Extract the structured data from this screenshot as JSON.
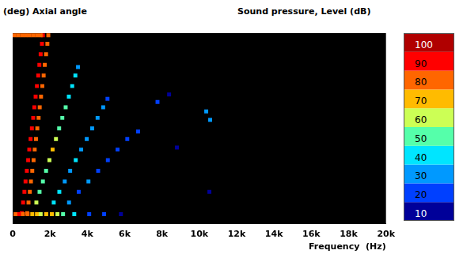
{
  "chart_data": {
    "type": "heatmap",
    "title": "Sound pressure, Level  (dB)",
    "y_label": "(deg)  Axial angle",
    "x_label": "Frequency  (Hz)",
    "xlim": [
      0,
      20000
    ],
    "xticks": [
      0,
      {
        "value": 2000,
        "label": "2k"
      },
      {
        "value": 4000,
        "label": "4k"
      },
      {
        "value": 6000,
        "label": "6k"
      },
      {
        "value": 8000,
        "label": "8k"
      },
      {
        "value": 10000,
        "label": "10k"
      },
      {
        "value": 12000,
        "label": "12k"
      },
      {
        "value": 14000,
        "label": "14k"
      },
      {
        "value": 16000,
        "label": "16k"
      },
      {
        "value": 18000,
        "label": "18k"
      },
      {
        "value": 20000,
        "label": "20k"
      }
    ],
    "ylim": [
      0,
      90
    ],
    "tick_labels": "x",
    "grid": false,
    "colorbar": {
      "range": [
        10,
        110
      ],
      "ticks": [
        10,
        20,
        30,
        40,
        50,
        60,
        70,
        80,
        90,
        100
      ],
      "colors": [
        "#000099",
        "#0040ff",
        "#0099ff",
        "#00e5ff",
        "#55ffaa",
        "#ccff55",
        "#ffbb00",
        "#ff6600",
        "#ff0000",
        "#b00000"
      ]
    },
    "cells": [
      [
        490,
        5,
        95
      ],
      [
        560,
        10,
        95
      ],
      [
        630,
        15,
        95
      ],
      [
        690,
        20,
        95
      ],
      [
        760,
        25,
        95
      ],
      [
        830,
        30,
        95
      ],
      [
        890,
        35,
        95
      ],
      [
        960,
        40,
        95
      ],
      [
        1030,
        45,
        95
      ],
      [
        1100,
        50,
        95
      ],
      [
        1160,
        55,
        95
      ],
      [
        1230,
        60,
        95
      ],
      [
        1300,
        65,
        95
      ],
      [
        1370,
        70,
        95
      ],
      [
        1430,
        75,
        95
      ],
      [
        1500,
        80,
        95
      ],
      [
        1570,
        85,
        95
      ],
      [
        1620,
        89,
        95
      ],
      [
        780,
        5,
        88
      ],
      [
        850,
        10,
        88
      ],
      [
        920,
        15,
        88
      ],
      [
        980,
        20,
        88
      ],
      [
        1050,
        25,
        88
      ],
      [
        1120,
        30,
        88
      ],
      [
        1180,
        35,
        88
      ],
      [
        1250,
        40,
        88
      ],
      [
        1320,
        45,
        88
      ],
      [
        1390,
        50,
        88
      ],
      [
        1450,
        55,
        88
      ],
      [
        1520,
        60,
        88
      ],
      [
        1590,
        65,
        88
      ],
      [
        1660,
        70,
        88
      ],
      [
        1720,
        75,
        88
      ],
      [
        1790,
        80,
        88
      ],
      [
        1860,
        85,
        88
      ],
      [
        1910,
        89,
        88
      ],
      [
        100,
        89,
        82
      ],
      [
        300,
        89,
        82
      ],
      [
        500,
        89,
        82
      ],
      [
        700,
        89,
        82
      ],
      [
        900,
        89,
        82
      ],
      [
        1100,
        89,
        82
      ],
      [
        1300,
        89,
        82
      ],
      [
        1500,
        89,
        82
      ],
      [
        150,
        4.5,
        85
      ],
      [
        350,
        4.5,
        90
      ],
      [
        550,
        4.5,
        88
      ],
      [
        800,
        4.5,
        80
      ],
      [
        1050,
        4.5,
        75
      ],
      [
        1300,
        4.5,
        70
      ],
      [
        1500,
        4.5,
        65
      ],
      [
        1800,
        4.5,
        75
      ],
      [
        2100,
        4.5,
        70
      ],
      [
        2400,
        4.5,
        60
      ],
      [
        2700,
        4.5,
        55
      ],
      [
        3300,
        4.5,
        40
      ],
      [
        4100,
        4.5,
        25
      ],
      [
        4900,
        4.5,
        20
      ],
      [
        5800,
        4.5,
        18
      ],
      [
        1270,
        10,
        60
      ],
      [
        1440,
        15,
        58
      ],
      [
        1620,
        20,
        55
      ],
      [
        1790,
        25,
        55
      ],
      [
        1970,
        30,
        62
      ],
      [
        2140,
        35,
        72
      ],
      [
        2320,
        40,
        60
      ],
      [
        2490,
        45,
        55
      ],
      [
        2660,
        50,
        52
      ],
      [
        2840,
        55,
        50
      ],
      [
        3010,
        60,
        48
      ],
      [
        3190,
        65,
        45
      ],
      [
        3360,
        70,
        42
      ],
      [
        3500,
        74,
        38
      ],
      [
        2200,
        10,
        42
      ],
      [
        2500,
        15,
        40
      ],
      [
        2790,
        20,
        38
      ],
      [
        3080,
        25,
        38
      ],
      [
        3380,
        30,
        40
      ],
      [
        3670,
        35,
        36
      ],
      [
        3970,
        40,
        35
      ],
      [
        4260,
        45,
        33
      ],
      [
        4550,
        50,
        32
      ],
      [
        4850,
        55,
        30
      ],
      [
        5080,
        59,
        28
      ],
      [
        3020,
        10,
        30
      ],
      [
        3540,
        15,
        28
      ],
      [
        4060,
        20,
        30
      ],
      [
        4580,
        25,
        26
      ],
      [
        5100,
        30,
        28
      ],
      [
        5620,
        35,
        24
      ],
      [
        6140,
        40,
        22
      ],
      [
        6720,
        43.5,
        22
      ],
      [
        7760,
        57.5,
        25
      ],
      [
        8380,
        61,
        18
      ],
      [
        8800,
        36,
        18
      ],
      [
        10370,
        53,
        35
      ],
      [
        10580,
        49,
        30
      ],
      [
        10540,
        15,
        18
      ]
    ]
  }
}
